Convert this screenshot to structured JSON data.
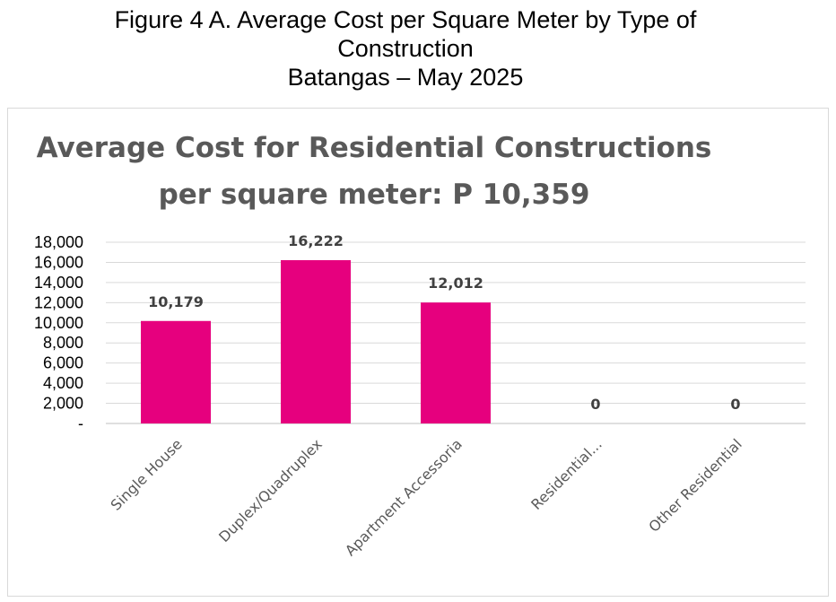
{
  "figure": {
    "title_line1": "Figure 4 A. Average Cost per Square Meter by Type of",
    "title_line2": "Construction",
    "title_line3": "Batangas – May 2025"
  },
  "chart_data": {
    "type": "bar",
    "title": "Average Cost for Residential Constructions per square meter: P 10,359",
    "title_line1": "Average Cost for Residential Constructions",
    "title_line2": "per square meter: P 10,359",
    "categories": [
      "Single House",
      "Duplex/Quadruplex",
      "Apartment Accessoria",
      "Residential...",
      "Other Residential"
    ],
    "values": [
      10179,
      16222,
      12012,
      0,
      0
    ],
    "data_labels": [
      "10,179",
      "16,222",
      "12,012",
      "0",
      "0"
    ],
    "yticks": [
      "-",
      "2,000",
      "4,000",
      "6,000",
      "8,000",
      "10,000",
      "12,000",
      "14,000",
      "16,000",
      "18,000"
    ],
    "ylim": [
      0,
      18000
    ],
    "grid": true,
    "bar_color": "#e6007e"
  }
}
